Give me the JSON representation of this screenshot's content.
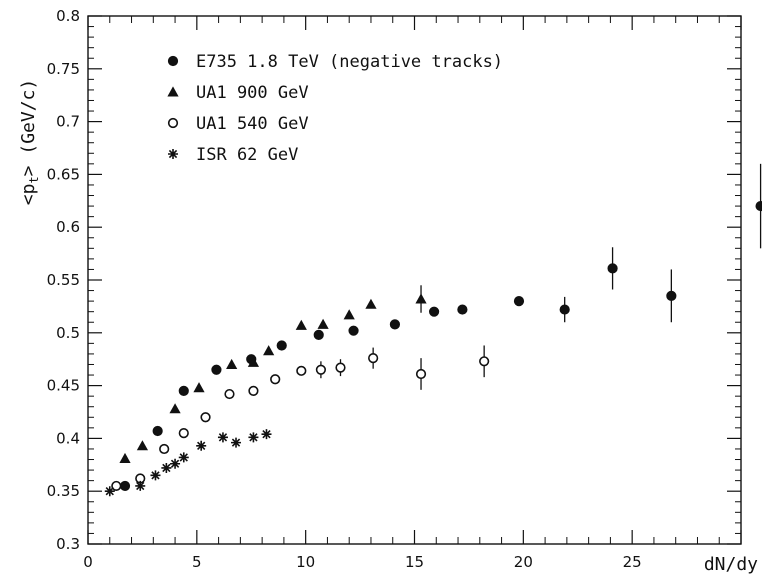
{
  "chart_data": {
    "type": "scatter",
    "title": "",
    "xlabel": "dN/dy",
    "ylabel": "<pt> (GeV/c)",
    "ylabel_main": "<p",
    "ylabel_sub": "t",
    "ylabel_tail": "> (GeV/c)",
    "xlim": [
      0,
      30
    ],
    "ylim": [
      0.3,
      0.8
    ],
    "x_ticks": [
      0,
      5,
      10,
      15,
      20,
      25,
      30
    ],
    "x_tick_labels": [
      "0",
      "5",
      "10",
      "15",
      "20",
      "25",
      "30"
    ],
    "y_ticks": [
      0.3,
      0.35,
      0.4,
      0.45,
      0.5,
      0.55,
      0.6,
      0.65,
      0.7,
      0.75,
      0.8
    ],
    "y_tick_labels": [
      "0.3",
      "0.35",
      "0.4",
      "0.45",
      "0.5",
      "0.55",
      "0.6",
      "0.65",
      "0.7",
      "0.75",
      "0.8"
    ],
    "grid": false,
    "legend_position": "top-left",
    "series": [
      {
        "name": "E735 1.8 TeV (negative tracks)",
        "marker": "filled-circle",
        "points": [
          {
            "x": 1.7,
            "y": 0.355,
            "err": 0
          },
          {
            "x": 3.2,
            "y": 0.407,
            "err": 0
          },
          {
            "x": 4.4,
            "y": 0.445,
            "err": 0
          },
          {
            "x": 5.9,
            "y": 0.465,
            "err": 0
          },
          {
            "x": 7.5,
            "y": 0.475,
            "err": 0
          },
          {
            "x": 8.9,
            "y": 0.488,
            "err": 0
          },
          {
            "x": 10.6,
            "y": 0.498,
            "err": 0
          },
          {
            "x": 12.2,
            "y": 0.502,
            "err": 0
          },
          {
            "x": 14.1,
            "y": 0.508,
            "err": 0
          },
          {
            "x": 15.9,
            "y": 0.52,
            "err": 0
          },
          {
            "x": 17.2,
            "y": 0.522,
            "err": 0
          },
          {
            "x": 19.8,
            "y": 0.53,
            "err": 0
          },
          {
            "x": 21.9,
            "y": 0.522,
            "err": 0.012
          },
          {
            "x": 24.1,
            "y": 0.561,
            "err": 0.02
          },
          {
            "x": 26.8,
            "y": 0.535,
            "err": 0.025
          },
          {
            "x": 30.9,
            "y": 0.62,
            "err": 0.04
          }
        ]
      },
      {
        "name": "UA1 900 GeV",
        "marker": "filled-triangle",
        "points": [
          {
            "x": 1.7,
            "y": 0.381,
            "err": 0
          },
          {
            "x": 2.5,
            "y": 0.393,
            "err": 0
          },
          {
            "x": 4.0,
            "y": 0.428,
            "err": 0
          },
          {
            "x": 5.1,
            "y": 0.448,
            "err": 0
          },
          {
            "x": 6.6,
            "y": 0.47,
            "err": 0
          },
          {
            "x": 7.6,
            "y": 0.472,
            "err": 0
          },
          {
            "x": 8.3,
            "y": 0.483,
            "err": 0
          },
          {
            "x": 9.8,
            "y": 0.507,
            "err": 0
          },
          {
            "x": 10.8,
            "y": 0.508,
            "err": 0
          },
          {
            "x": 12.0,
            "y": 0.517,
            "err": 0
          },
          {
            "x": 13.0,
            "y": 0.527,
            "err": 0
          },
          {
            "x": 15.3,
            "y": 0.532,
            "err": 0.013
          }
        ]
      },
      {
        "name": "UA1 540 GeV",
        "marker": "open-circle",
        "points": [
          {
            "x": 1.3,
            "y": 0.355,
            "err": 0
          },
          {
            "x": 2.4,
            "y": 0.362,
            "err": 0
          },
          {
            "x": 3.5,
            "y": 0.39,
            "err": 0
          },
          {
            "x": 4.4,
            "y": 0.405,
            "err": 0
          },
          {
            "x": 5.4,
            "y": 0.42,
            "err": 0
          },
          {
            "x": 6.5,
            "y": 0.442,
            "err": 0
          },
          {
            "x": 7.6,
            "y": 0.445,
            "err": 0
          },
          {
            "x": 8.6,
            "y": 0.456,
            "err": 0
          },
          {
            "x": 9.8,
            "y": 0.464,
            "err": 0
          },
          {
            "x": 10.7,
            "y": 0.465,
            "err": 0.008
          },
          {
            "x": 11.6,
            "y": 0.467,
            "err": 0.008
          },
          {
            "x": 13.1,
            "y": 0.476,
            "err": 0.01
          },
          {
            "x": 15.3,
            "y": 0.461,
            "err": 0.015
          },
          {
            "x": 18.2,
            "y": 0.473,
            "err": 0.015
          }
        ]
      },
      {
        "name": "ISR 62 GeV",
        "marker": "asterisk",
        "points": [
          {
            "x": 1.0,
            "y": 0.35,
            "err": 0
          },
          {
            "x": 2.4,
            "y": 0.355,
            "err": 0
          },
          {
            "x": 3.1,
            "y": 0.365,
            "err": 0
          },
          {
            "x": 3.6,
            "y": 0.372,
            "err": 0
          },
          {
            "x": 4.0,
            "y": 0.376,
            "err": 0
          },
          {
            "x": 4.4,
            "y": 0.382,
            "err": 0
          },
          {
            "x": 5.2,
            "y": 0.393,
            "err": 0
          },
          {
            "x": 6.2,
            "y": 0.401,
            "err": 0
          },
          {
            "x": 6.8,
            "y": 0.396,
            "err": 0
          },
          {
            "x": 7.6,
            "y": 0.401,
            "err": 0
          },
          {
            "x": 8.2,
            "y": 0.404,
            "err": 0
          }
        ]
      }
    ]
  }
}
